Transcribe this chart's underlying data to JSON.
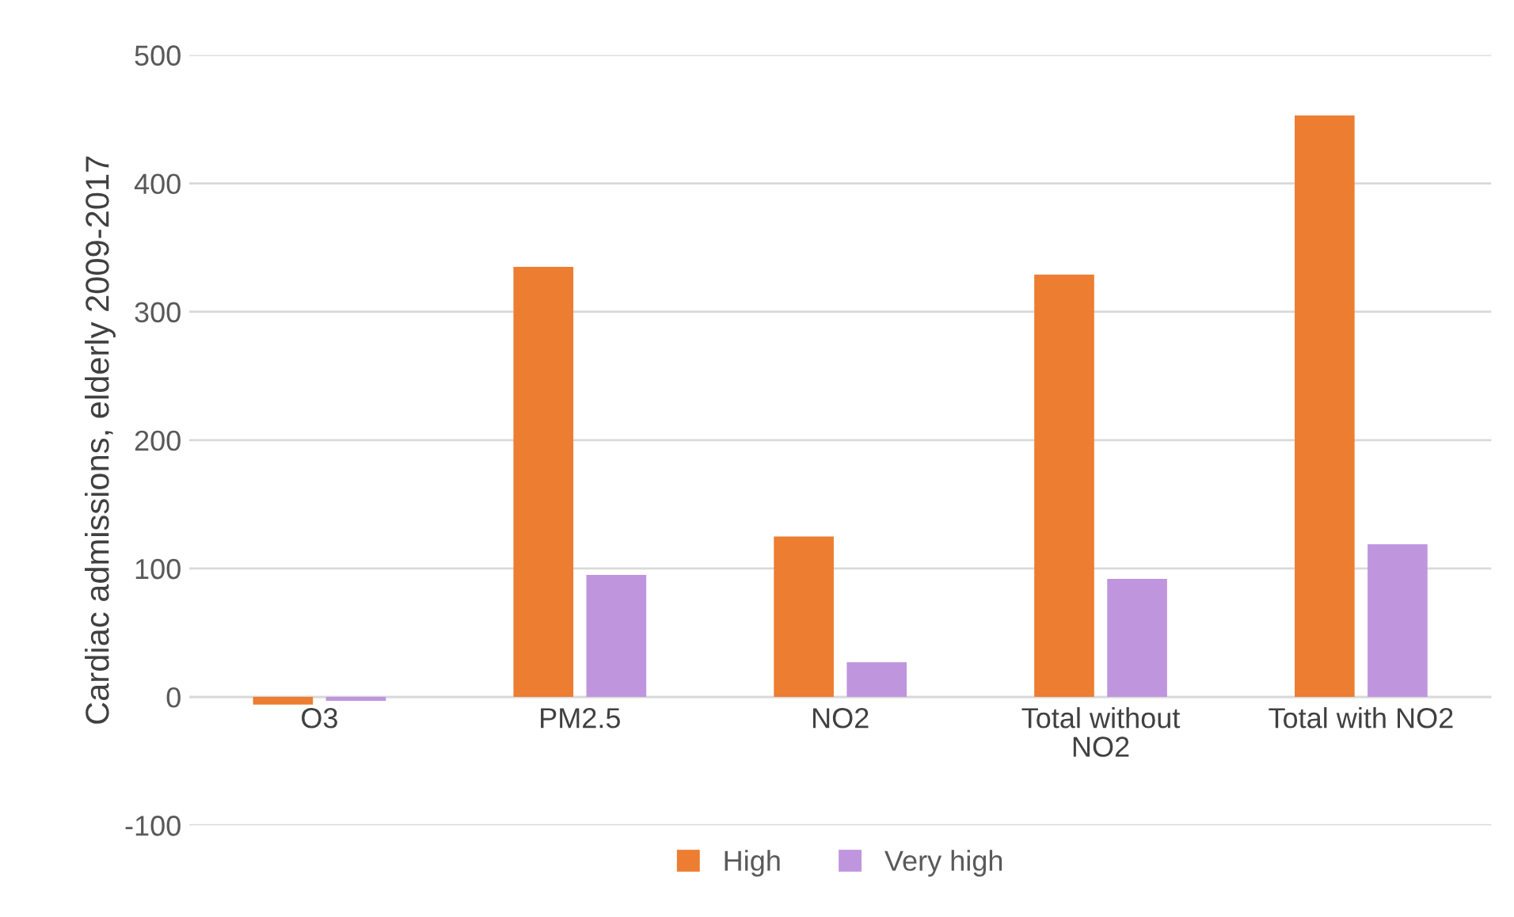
{
  "chart_data": {
    "type": "bar",
    "ylabel": "Cardiac admissions, elderly 2009-2017",
    "categories": [
      "O3",
      "PM2.5",
      "NO2",
      "Total without NO2",
      "Total with NO2"
    ],
    "series": [
      {
        "name": "High",
        "color": "#ed7d31",
        "values": [
          -6,
          335,
          125,
          329,
          453
        ]
      },
      {
        "name": "Very high",
        "color": "#bf95de",
        "values": [
          -3,
          95,
          27,
          92,
          119
        ]
      }
    ],
    "ylim": [
      -100,
      500
    ],
    "yticks": [
      -100,
      0,
      100,
      200,
      300,
      400,
      500
    ],
    "grid": "y",
    "legend": "bottom"
  }
}
